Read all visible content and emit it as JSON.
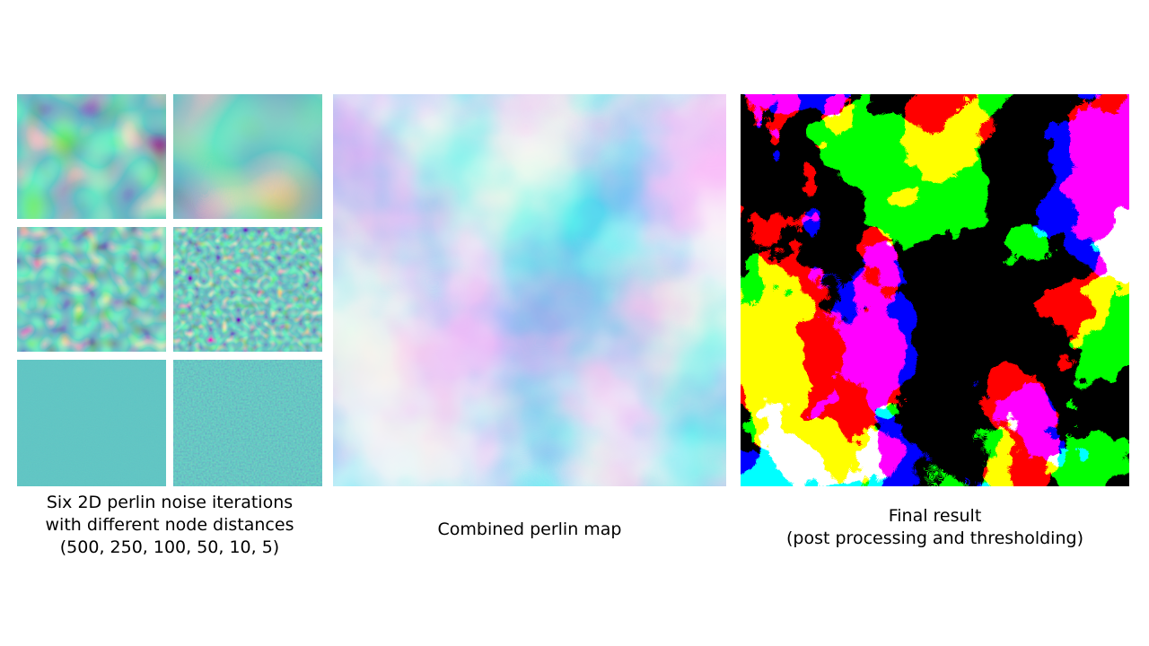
{
  "colors": {
    "viridis_dark": "#440154",
    "viridis_mid": "#21918c",
    "viridis_light": "#fde725",
    "cloud_blue": "#1976d2",
    "cloud_white": "#f2f2f2",
    "mask_black": "#000000",
    "mask_white": "#ffffff"
  },
  "panels": {
    "iterations": {
      "caption_lines": [
        "Six 2D perlin noise iterations",
        "with different node distances",
        "(500, 250, 100, 50, 10, 5)"
      ],
      "node_distances": [
        500,
        250,
        100,
        50,
        10,
        5
      ]
    },
    "combined": {
      "caption_lines": [
        "Combined perlin map"
      ]
    },
    "final": {
      "caption_lines": [
        "Final result",
        "(post processing and thresholding)"
      ]
    }
  }
}
